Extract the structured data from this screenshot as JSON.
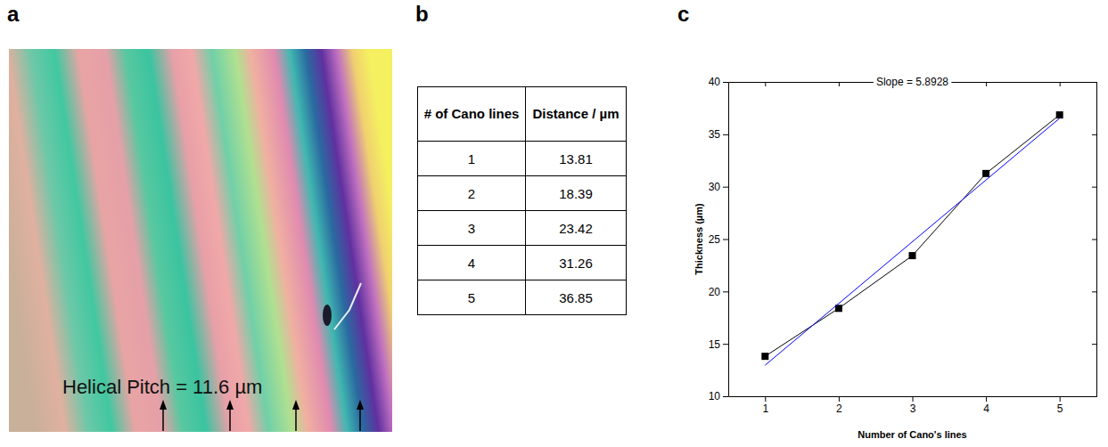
{
  "panel_labels": [
    "a",
    "b",
    "c"
  ],
  "image": {
    "annotation": "Helical Pitch = 11.6 µm"
  },
  "table": {
    "columns": [
      "# of Cano lines",
      "Distance / µm"
    ],
    "rows": [
      [
        1,
        13.81
      ],
      [
        2,
        18.39
      ],
      [
        3,
        23.42
      ],
      [
        4,
        31.26
      ],
      [
        5,
        36.85
      ]
    ]
  },
  "chart_data": {
    "type": "line",
    "title": "Slope = 5.8928",
    "xlabel": "Number of Cano's lines",
    "ylabel": "Thickness (µm)",
    "x": [
      1,
      2,
      3,
      4,
      5
    ],
    "series": [
      {
        "color": "#000000",
        "marker": "square",
        "line_style": "solid",
        "values": [
          13.81,
          18.39,
          23.42,
          31.26,
          36.85
        ]
      },
      {
        "color": "#0000ff",
        "marker": "none",
        "line_style": "solid",
        "x": [
          1,
          5
        ],
        "values": [
          12.96,
          36.53
        ]
      }
    ],
    "xlim": [
      0.5,
      5.5
    ],
    "xticks": [
      1,
      2,
      3,
      4,
      5
    ],
    "ylim": [
      10,
      40
    ],
    "yticks": [
      10,
      15,
      20,
      25,
      30,
      35,
      40
    ]
  }
}
